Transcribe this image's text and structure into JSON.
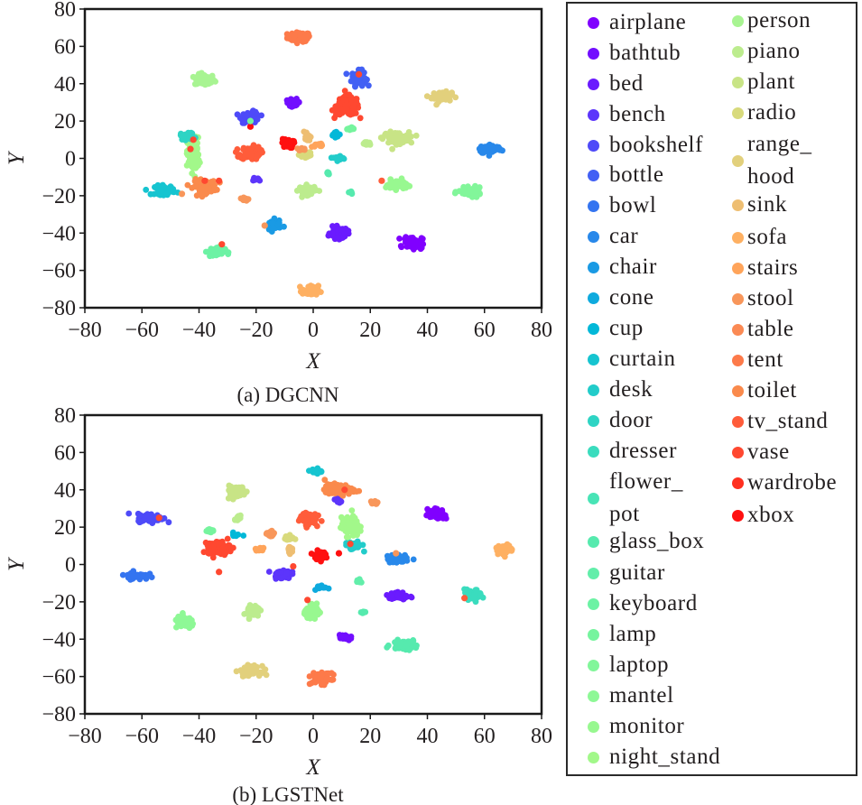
{
  "figure": {
    "legend_title": "",
    "legend_items": [
      {
        "label": "airplane",
        "color": "#8000ff"
      },
      {
        "label": "bathtub",
        "color": "#720eff"
      },
      {
        "label": "bed",
        "color": "#6a1bfe"
      },
      {
        "label": "bench",
        "color": "#5c35fb"
      },
      {
        "label": "bookshelf",
        "color": "#4e4af8"
      },
      {
        "label": "bottle",
        "color": "#4260f4"
      },
      {
        "label": "bowl",
        "color": "#3474f0"
      },
      {
        "label": "car",
        "color": "#2888ea"
      },
      {
        "label": "chair",
        "color": "#1a9ae4"
      },
      {
        "label": "cone",
        "color": "#0eaade"
      },
      {
        "label": "cup",
        "color": "#02b8d8"
      },
      {
        "label": "curtain",
        "color": "#16c4d0"
      },
      {
        "label": "desk",
        "color": "#22ccca"
      },
      {
        "label": "door",
        "color": "#2ed4c4"
      },
      {
        "label": "dresser",
        "color": "#3adcbe"
      },
      {
        "label": "flower_\npot",
        "color": "#48e4b6"
      },
      {
        "label": "glass_box",
        "color": "#56eaae"
      },
      {
        "label": "guitar",
        "color": "#62eeaa"
      },
      {
        "label": "keyboard",
        "color": "#6cf2a4"
      },
      {
        "label": "lamp",
        "color": "#76f49e"
      },
      {
        "label": "laptop",
        "color": "#82f69a"
      },
      {
        "label": "mantel",
        "color": "#8ef896"
      },
      {
        "label": "monitor",
        "color": "#98f890"
      },
      {
        "label": "night_stand",
        "color": "#a2f88a"
      },
      {
        "label": "person",
        "color": "#a8f492"
      },
      {
        "label": "piano",
        "color": "#bcec8e"
      },
      {
        "label": "plant",
        "color": "#c8e486"
      },
      {
        "label": "radio",
        "color": "#d8da7c"
      },
      {
        "label": "range_\nhood",
        "color": "#e2d07c"
      },
      {
        "label": "sink",
        "color": "#eebe72"
      },
      {
        "label": "sofa",
        "color": "#feb062"
      },
      {
        "label": "stairs",
        "color": "#ffa45a"
      },
      {
        "label": "stool",
        "color": "#f8965a"
      },
      {
        "label": "table",
        "color": "#fb8a54"
      },
      {
        "label": "tent",
        "color": "#fd7a4a"
      },
      {
        "label": "toilet",
        "color": "#fa8a4c"
      },
      {
        "label": "tv_stand",
        "color": "#ff5c3a"
      },
      {
        "label": "vase",
        "color": "#ff4830"
      },
      {
        "label": "wardrobe",
        "color": "#ff3020"
      },
      {
        "label": "xbox",
        "color": "#ff1010"
      }
    ]
  },
  "chart_data": [
    {
      "type": "scatter",
      "title": "",
      "caption": "(a) DGCNN",
      "xlabel": "X",
      "ylabel": "Y",
      "xlim": [
        -80,
        80
      ],
      "ylim": [
        -80,
        80
      ],
      "xticks": [
        "−80",
        "−60",
        "−40",
        "−20",
        "0",
        "20",
        "40",
        "60",
        "80"
      ],
      "yticks": [
        "80",
        "60",
        "40",
        "20",
        "0",
        "−20",
        "−40",
        "−60",
        "−80"
      ],
      "grid": false,
      "legend": "right",
      "clusters": [
        {
          "cls": "tent",
          "x": -5,
          "y": 65,
          "rx": 4,
          "ry": 2.5
        },
        {
          "cls": "person",
          "x": -38,
          "y": 42,
          "rx": 3.5,
          "ry": 3
        },
        {
          "cls": "bottle",
          "x": 16,
          "y": 43,
          "rx": 2.5,
          "ry": 4
        },
        {
          "cls": "range_hood",
          "x": 45,
          "y": 33,
          "rx": 3.5,
          "ry": 2.5
        },
        {
          "cls": "bathtub",
          "x": -7,
          "y": 30,
          "rx": 2.5,
          "ry": 1.8
        },
        {
          "cls": "vase",
          "x": 12,
          "y": 28,
          "rx": 4,
          "ry": 5
        },
        {
          "cls": "bookshelf",
          "x": -22,
          "y": 22,
          "rx": 3.2,
          "ry": 3
        },
        {
          "cls": "plant",
          "x": 29,
          "y": 11,
          "rx": 4.5,
          "ry": 3
        },
        {
          "cls": "car",
          "x": 62,
          "y": 5,
          "rx": 4,
          "ry": 2.5
        },
        {
          "cls": "tv_stand",
          "x": -22,
          "y": 3,
          "rx": 3.5,
          "ry": 3.5
        },
        {
          "cls": "xbox",
          "x": -9,
          "y": 8,
          "rx": 2,
          "ry": 2.5
        },
        {
          "cls": "night_stand",
          "x": -42,
          "y": 2,
          "rx": 2,
          "ry": 9
        },
        {
          "cls": "door",
          "x": -44,
          "y": 12,
          "rx": 2.5,
          "ry": 2
        },
        {
          "cls": "toilet",
          "x": -38,
          "y": -15,
          "rx": 4,
          "ry": 3.5
        },
        {
          "cls": "curtain",
          "x": -52,
          "y": -17,
          "rx": 3.5,
          "ry": 2.5
        },
        {
          "cls": "piano",
          "x": -2,
          "y": -17,
          "rx": 3,
          "ry": 2.5
        },
        {
          "cls": "monitor",
          "x": 29,
          "y": -14,
          "rx": 3.5,
          "ry": 2.5
        },
        {
          "cls": "laptop",
          "x": 55,
          "y": -18,
          "rx": 4,
          "ry": 2.2
        },
        {
          "cls": "chair",
          "x": -14,
          "y": -36,
          "rx": 2.5,
          "ry": 3
        },
        {
          "cls": "bed",
          "x": 9,
          "y": -40,
          "rx": 3,
          "ry": 3
        },
        {
          "cls": "airplane",
          "x": 35,
          "y": -45,
          "rx": 3.2,
          "ry": 3.2
        },
        {
          "cls": "keyboard",
          "x": -34,
          "y": -50,
          "rx": 3,
          "ry": 2.5
        },
        {
          "cls": "sofa",
          "x": -1,
          "y": -71,
          "rx": 2.8,
          "ry": 2.8
        },
        {
          "cls": "radio",
          "x": -2,
          "y": 2,
          "rx": 2.5,
          "ry": 1.5
        },
        {
          "cls": "sink",
          "x": -2,
          "y": 12,
          "rx": 1,
          "ry": 2.5
        },
        {
          "cls": "stairs",
          "x": 2,
          "y": 7,
          "rx": 1.5,
          "ry": 1
        },
        {
          "cls": "cup",
          "x": 8,
          "y": 13,
          "rx": 1.5,
          "ry": 1.5
        },
        {
          "cls": "lamp",
          "x": 13,
          "y": 16,
          "rx": 1.2,
          "ry": 1.2
        },
        {
          "cls": "desk",
          "x": 9,
          "y": 0,
          "rx": 2,
          "ry": 1.2
        },
        {
          "cls": "piano",
          "x": 19,
          "y": 8,
          "rx": 1.5,
          "ry": 1.3
        },
        {
          "cls": "glass_box",
          "x": 5,
          "y": -8,
          "rx": 1,
          "ry": 1
        },
        {
          "cls": "glass_box",
          "x": 13,
          "y": -18,
          "rx": 1,
          "ry": 1
        },
        {
          "cls": "bench",
          "x": -20,
          "y": -11,
          "rx": 1.8,
          "ry": 1
        },
        {
          "cls": "stool",
          "x": -24,
          "y": -22,
          "rx": 1.5,
          "ry": 1.2
        },
        {
          "cls": "stool",
          "x": -4,
          "y": 5,
          "rx": 1.5,
          "ry": 1
        }
      ],
      "outliers": [
        {
          "cls": "vase",
          "x": 16,
          "y": 45
        },
        {
          "cls": "vase",
          "x": -42,
          "y": 10
        },
        {
          "cls": "vase",
          "x": -43,
          "y": 5
        },
        {
          "cls": "xbox",
          "x": -22,
          "y": 17
        },
        {
          "cls": "lamp",
          "x": -22,
          "y": 20
        },
        {
          "cls": "vase",
          "x": -32,
          "y": -46
        },
        {
          "cls": "stool",
          "x": -17,
          "y": -36
        },
        {
          "cls": "tv_stand",
          "x": 24,
          "y": -12
        },
        {
          "cls": "vase",
          "x": -38,
          "y": -12
        },
        {
          "cls": "vase",
          "x": -33,
          "y": -12
        },
        {
          "cls": "stool",
          "x": -46,
          "y": -19
        }
      ]
    },
    {
      "type": "scatter",
      "title": "",
      "caption": "(b) LGSTNet",
      "xlabel": "X",
      "ylabel": "Y",
      "xlim": [
        -80,
        80
      ],
      "ylim": [
        -80,
        80
      ],
      "xticks": [
        "−80",
        "−60",
        "−40",
        "−20",
        "0",
        "20",
        "40",
        "60",
        "80"
      ],
      "yticks": [
        "80",
        "60",
        "40",
        "20",
        "0",
        "−20",
        "−40",
        "−60",
        "−80"
      ],
      "grid": false,
      "legend": "right",
      "clusters": [
        {
          "cls": "bookshelf",
          "x": -57,
          "y": 25,
          "rx": 4.5,
          "ry": 2.2
        },
        {
          "cls": "bowl",
          "x": -62,
          "y": -6,
          "rx": 4,
          "ry": 2
        },
        {
          "cls": "plant",
          "x": -27,
          "y": 39,
          "rx": 3.5,
          "ry": 3
        },
        {
          "cls": "vase",
          "x": -33,
          "y": 9,
          "rx": 3.8,
          "ry": 3.5
        },
        {
          "cls": "curtain",
          "x": 1,
          "y": 50,
          "rx": 2,
          "ry": 1.5
        },
        {
          "cls": "toilet",
          "x": 9,
          "y": 40,
          "rx": 5,
          "ry": 3
        },
        {
          "cls": "tv_stand",
          "x": -2,
          "y": 25,
          "rx": 3,
          "ry": 3.5
        },
        {
          "cls": "night_stand",
          "x": 13,
          "y": 20,
          "rx": 3,
          "ry": 5
        },
        {
          "cls": "airplane",
          "x": 43,
          "y": 27,
          "rx": 3,
          "ry": 2.8
        },
        {
          "cls": "sofa",
          "x": 67,
          "y": 8,
          "rx": 3,
          "ry": 2.5
        },
        {
          "cls": "car",
          "x": 30,
          "y": 3,
          "rx": 4,
          "ry": 2.2
        },
        {
          "cls": "xbox",
          "x": 2,
          "y": 5,
          "rx": 2.2,
          "ry": 2.2
        },
        {
          "cls": "bench",
          "x": -11,
          "y": -5,
          "rx": 3,
          "ry": 2.5
        },
        {
          "cls": "bed",
          "x": 30,
          "y": -17,
          "rx": 3.5,
          "ry": 2.2
        },
        {
          "cls": "dresser",
          "x": 56,
          "y": -16,
          "rx": 3,
          "ry": 2.5
        },
        {
          "cls": "piano",
          "x": -21,
          "y": -25,
          "rx": 2.2,
          "ry": 3.5
        },
        {
          "cls": "monitor",
          "x": 0,
          "y": -25,
          "rx": 3,
          "ry": 3
        },
        {
          "cls": "mantel",
          "x": -45,
          "y": -31,
          "rx": 3.5,
          "ry": 3
        },
        {
          "cls": "bathtub",
          "x": 11,
          "y": -39,
          "rx": 2,
          "ry": 2
        },
        {
          "cls": "glass_box",
          "x": 32,
          "y": -43,
          "rx": 4.5,
          "ry": 2.5
        },
        {
          "cls": "range_hood",
          "x": -22,
          "y": -57,
          "rx": 3.5,
          "ry": 2.5
        },
        {
          "cls": "tent",
          "x": 3,
          "y": -61,
          "rx": 3.5,
          "ry": 3
        },
        {
          "cls": "radio",
          "x": -9,
          "y": 14,
          "rx": 2,
          "ry": 1.3
        },
        {
          "cls": "sink",
          "x": -8,
          "y": 8,
          "rx": 1.2,
          "ry": 2
        },
        {
          "cls": "stairs",
          "x": -19,
          "y": 8,
          "rx": 1.8,
          "ry": 1.2
        },
        {
          "cls": "stool",
          "x": -15,
          "y": 16,
          "rx": 1.2,
          "ry": 2
        },
        {
          "cls": "desk",
          "x": 14,
          "y": 10,
          "rx": 3,
          "ry": 2
        },
        {
          "cls": "stool",
          "x": 21,
          "y": 33,
          "rx": 1.8,
          "ry": 1
        },
        {
          "cls": "lamp",
          "x": -36,
          "y": 18,
          "rx": 1.5,
          "ry": 1
        },
        {
          "cls": "cup",
          "x": -27,
          "y": 16,
          "rx": 1.2,
          "ry": 1.2
        },
        {
          "cls": "cone",
          "x": 3,
          "y": -12,
          "rx": 2,
          "ry": 1.2
        },
        {
          "cls": "guitar",
          "x": 16,
          "y": -9,
          "rx": 1,
          "ry": 1
        },
        {
          "cls": "glass_box",
          "x": 18,
          "y": -26,
          "rx": 1,
          "ry": 1
        },
        {
          "cls": "bench",
          "x": 9,
          "y": 34,
          "rx": 1.3,
          "ry": 1
        },
        {
          "cls": "piano",
          "x": -26,
          "y": 25,
          "rx": 1,
          "ry": 2
        }
      ],
      "outliers": [
        {
          "cls": "vase",
          "x": -54,
          "y": 25
        },
        {
          "cls": "vase",
          "x": -33,
          "y": -4
        },
        {
          "cls": "stool",
          "x": 29,
          "y": 6
        },
        {
          "cls": "vase",
          "x": -2,
          "y": -19
        },
        {
          "cls": "tv_stand",
          "x": 53,
          "y": -18
        },
        {
          "cls": "vase",
          "x": 11,
          "y": 40
        },
        {
          "cls": "vase",
          "x": 13,
          "y": 11
        },
        {
          "cls": "xbox",
          "x": 9,
          "y": 6
        },
        {
          "cls": "vase",
          "x": -7,
          "y": -1
        }
      ]
    }
  ]
}
